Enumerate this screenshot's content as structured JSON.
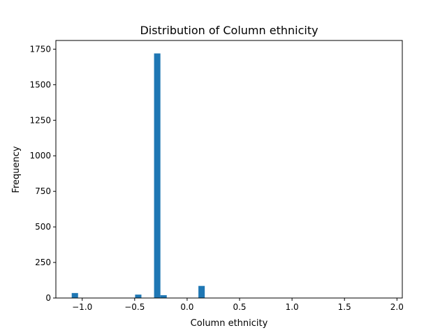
{
  "chart_data": {
    "type": "bar",
    "title": "Distribution of Column ethnicity",
    "xlabel": "Column ethnicity",
    "ylabel": "Frequency",
    "bar_color": "#1f77b4",
    "bin_width": 0.0604,
    "bins": [
      {
        "start": -1.1,
        "count": 35
      },
      {
        "start": -0.496,
        "count": 24
      },
      {
        "start": -0.315,
        "count": 1720
      },
      {
        "start": -0.2546,
        "count": 20
      },
      {
        "start": 0.1076,
        "count": 85
      }
    ],
    "xlim": [
      -1.251,
      2.051
    ],
    "ylim": [
      0,
      1811
    ],
    "xticks": [
      -1.0,
      -0.5,
      0.0,
      0.5,
      1.0,
      1.5,
      2.0
    ],
    "xtick_labels": [
      "−1.0",
      "−0.5",
      "0.0",
      "0.5",
      "1.0",
      "1.5",
      "2.0"
    ],
    "yticks": [
      0,
      250,
      500,
      750,
      1000,
      1250,
      1500,
      1750
    ],
    "ytick_labels": [
      "0",
      "250",
      "500",
      "750",
      "1000",
      "1250",
      "1500",
      "1750"
    ]
  }
}
